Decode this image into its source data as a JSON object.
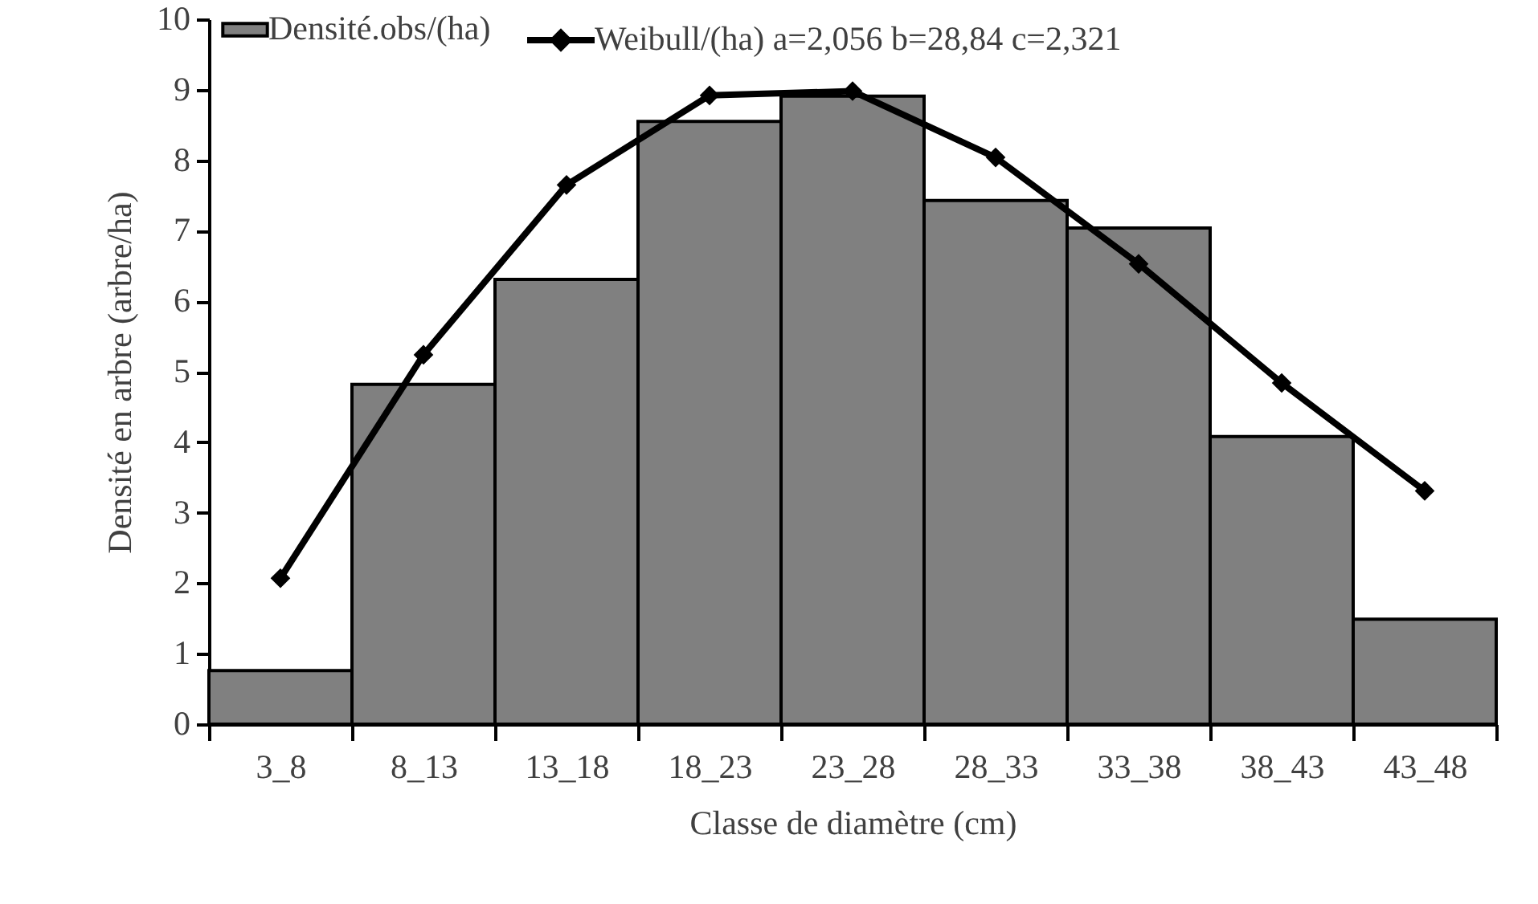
{
  "chart_data": {
    "type": "bar",
    "xlabel": "Classe de diamètre (cm)",
    "ylabel": "Densité en arbre (arbre/ha)",
    "categories": [
      "3_8",
      "8_13",
      "13_18",
      "18_23",
      "23_28",
      "28_33",
      "33_38",
      "38_43",
      "43_48"
    ],
    "series": [
      {
        "name": "Densité.obs/(ha)",
        "color": "#808080",
        "values": [
          0.76,
          4.82,
          6.31,
          8.55,
          8.91,
          7.43,
          7.04,
          4.08,
          1.49
        ]
      },
      {
        "name": "Weibull/(ha) a=2,056 b=28,84 c=2,321",
        "type": "line",
        "color": "#000000",
        "values": [
          2.07,
          5.24,
          7.65,
          8.92,
          8.98,
          8.04,
          6.53,
          4.84,
          3.31
        ]
      }
    ],
    "ylim": [
      0,
      10
    ],
    "yticks": [
      0,
      1,
      2,
      3,
      4,
      5,
      6,
      7,
      8,
      9,
      10
    ],
    "marker": "diamond",
    "line_style": "solid",
    "legend": "top",
    "grid": false
  }
}
